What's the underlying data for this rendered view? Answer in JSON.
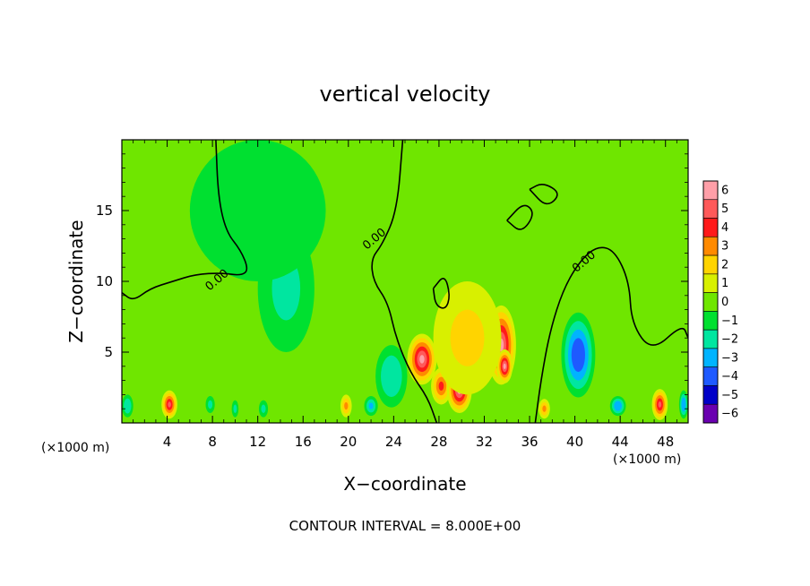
{
  "chart_data": {
    "type": "heatmap",
    "title": "vertical velocity",
    "xlabel": "X−coordinate",
    "ylabel": "Z−coordinate",
    "x_unit_left": "(×1000 m)",
    "x_unit_right": "(×1000 m)",
    "footnote": "CONTOUR INTERVAL = 8.000E+00",
    "xlim": [
      0,
      50
    ],
    "ylim": [
      0,
      20
    ],
    "x_ticks": [
      4,
      8,
      12,
      16,
      20,
      24,
      28,
      32,
      36,
      40,
      44,
      48
    ],
    "x_tick_labels": [
      "4",
      "8",
      "12",
      "16",
      "20",
      "24",
      "28",
      "32",
      "36",
      "40",
      "44",
      "48"
    ],
    "y_ticks": [
      5,
      10,
      15
    ],
    "y_tick_labels": [
      "5",
      "10",
      "15"
    ],
    "grid": false,
    "colorbar": {
      "position": "right",
      "levels": [
        6,
        5,
        4,
        3,
        2,
        1,
        0,
        -1,
        -2,
        -3,
        -4,
        -5,
        -6
      ],
      "labels": [
        "6",
        "5",
        "4",
        "3",
        "2",
        "1",
        "0",
        "−1",
        "−2",
        "−3",
        "−4",
        "−5",
        "−6"
      ],
      "colors": [
        "#ff9fa8",
        "#ff5a5a",
        "#ff1a1a",
        "#ff8a00",
        "#ffd400",
        "#d8f000",
        "#6fe600",
        "#00e030",
        "#00e6a0",
        "#00b4ff",
        "#1e5aff",
        "#0000c8",
        "#6a00b0"
      ]
    },
    "background_value": 0,
    "features": [
      {
        "x": 4.2,
        "z": 1.3,
        "rx": 0.7,
        "rz": 1.0,
        "value": 4.5
      },
      {
        "x": 19.8,
        "z": 1.2,
        "rx": 0.5,
        "rz": 0.8,
        "value": 2.5
      },
      {
        "x": 26.5,
        "z": 4.5,
        "rx": 1.3,
        "rz": 1.8,
        "value": 5.5
      },
      {
        "x": 28.2,
        "z": 2.6,
        "rx": 0.9,
        "rz": 1.3,
        "value": 4.0
      },
      {
        "x": 29.8,
        "z": 2.3,
        "rx": 1.1,
        "rz": 1.6,
        "value": 6.0
      },
      {
        "x": 33.5,
        "z": 5.5,
        "rx": 1.3,
        "rz": 2.8,
        "value": 6.0
      },
      {
        "x": 33.8,
        "z": 4.0,
        "rx": 0.7,
        "rz": 1.2,
        "value": 6.0
      },
      {
        "x": 30.5,
        "z": 6.0,
        "rx": 3.0,
        "rz": 4.0,
        "value": 2.0
      },
      {
        "x": 37.3,
        "z": 1.0,
        "rx": 0.5,
        "rz": 0.7,
        "value": 3.0
      },
      {
        "x": 47.5,
        "z": 1.3,
        "rx": 0.7,
        "rz": 1.1,
        "value": 5.0
      },
      {
        "x": 40.3,
        "z": 4.8,
        "rx": 1.5,
        "rz": 3.0,
        "value": -4.5
      },
      {
        "x": 23.8,
        "z": 3.3,
        "rx": 1.4,
        "rz": 2.2,
        "value": -2.5
      },
      {
        "x": 49.6,
        "z": 1.3,
        "rx": 0.4,
        "rz": 1.0,
        "value": -3.5
      },
      {
        "x": 0.5,
        "z": 1.2,
        "rx": 0.5,
        "rz": 0.8,
        "value": -2.5
      },
      {
        "x": 7.8,
        "z": 1.3,
        "rx": 0.4,
        "rz": 0.6,
        "value": -2.0
      },
      {
        "x": 12.5,
        "z": 1.0,
        "rx": 0.4,
        "rz": 0.6,
        "value": -2.0
      },
      {
        "x": 22.0,
        "z": 1.2,
        "rx": 0.6,
        "rz": 0.7,
        "value": -3.0
      },
      {
        "x": 43.8,
        "z": 1.2,
        "rx": 0.7,
        "rz": 0.7,
        "value": -3.5
      },
      {
        "x": 10.0,
        "z": 1.0,
        "rx": 0.3,
        "rz": 0.6,
        "value": -2.0
      },
      {
        "x": 14.5,
        "z": 9.5,
        "rx": 2.5,
        "rz": 4.5,
        "value": -1.6
      },
      {
        "x": 12.0,
        "z": 15.0,
        "rx": 6.0,
        "rz": 5.0,
        "value": -0.8
      }
    ],
    "contours": [
      {
        "label": "0.00",
        "points": [
          [
            8.3,
            20
          ],
          [
            8.5,
            16
          ],
          [
            9.2,
            13.5
          ],
          [
            10.5,
            12.2
          ],
          [
            11.2,
            10.8
          ],
          [
            10.5,
            10.4
          ],
          [
            8.8,
            10.6
          ],
          [
            6.5,
            10.5
          ],
          [
            4.5,
            10.0
          ],
          [
            2.5,
            9.5
          ],
          [
            1.0,
            8.6
          ],
          [
            0,
            9.2
          ]
        ],
        "label_x": 8.6,
        "label_z": 9.9
      },
      {
        "label": "0.00",
        "points": [
          [
            24.8,
            20
          ],
          [
            24.3,
            15
          ],
          [
            23.0,
            12.6
          ],
          [
            22.0,
            11.6
          ],
          [
            22.2,
            10.0
          ],
          [
            23.5,
            8.5
          ],
          [
            24.2,
            6.0
          ],
          [
            25.5,
            3.5
          ],
          [
            27.0,
            1.8
          ],
          [
            27.8,
            0
          ]
        ],
        "label_x": 22.5,
        "label_z": 12.8
      },
      {
        "label": "0.00",
        "points": [
          [
            36.5,
            0
          ],
          [
            37.0,
            3.0
          ],
          [
            37.8,
            6.5
          ],
          [
            39.0,
            9.5
          ],
          [
            40.5,
            11.5
          ],
          [
            42.0,
            12.5
          ],
          [
            43.5,
            12.2
          ],
          [
            44.8,
            10.0
          ],
          [
            45.0,
            7.0
          ],
          [
            46.8,
            5.0
          ],
          [
            49.5,
            7.0
          ],
          [
            50,
            6.0
          ]
        ],
        "label_x": 41.0,
        "label_z": 11.2
      },
      {
        "label": "",
        "points": [
          [
            27.5,
            9.5
          ],
          [
            28.5,
            10.5
          ],
          [
            29.0,
            9.0
          ],
          [
            28.6,
            8.0
          ],
          [
            27.7,
            8.3
          ],
          [
            27.5,
            9.5
          ]
        ],
        "label_x": 0,
        "label_z": 0
      },
      {
        "label": "",
        "points": [
          [
            34.0,
            14.3
          ],
          [
            35.5,
            15.6
          ],
          [
            36.5,
            14.8
          ],
          [
            35.3,
            13.4
          ],
          [
            34.0,
            14.3
          ]
        ],
        "label_x": 0,
        "label_z": 0
      },
      {
        "label": "",
        "points": [
          [
            36.0,
            16.5
          ],
          [
            37.2,
            17.0
          ],
          [
            38.8,
            16.2
          ],
          [
            37.5,
            15.2
          ],
          [
            36.0,
            16.5
          ]
        ],
        "label_x": 0,
        "label_z": 0
      }
    ]
  }
}
